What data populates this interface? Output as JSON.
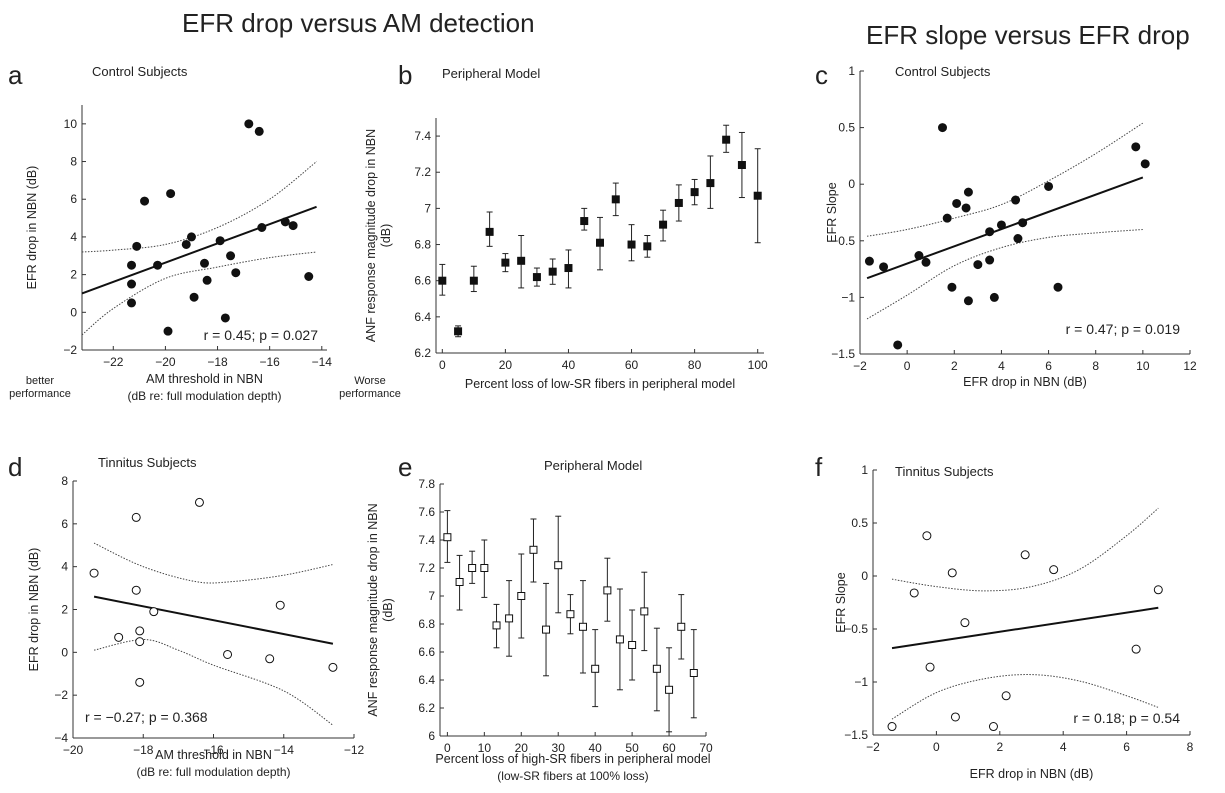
{
  "titles": {
    "left": "EFR drop versus AM detection",
    "right": "EFR slope versus EFR drop"
  },
  "chart_data": [
    {
      "letter": "a",
      "type": "scatter",
      "title": "Control Subjects",
      "xlabel": "AM threshold in NBN",
      "xlabel2": "(dB re: full modulation depth)",
      "ylabel": "EFR drop in NBN (dB)",
      "xlim": [
        -23.2,
        -13.8
      ],
      "ylim": [
        -2,
        11
      ],
      "xticks": [
        -22,
        -20,
        -18,
        -16,
        -14
      ],
      "yticks": [
        -2,
        0,
        2,
        4,
        6,
        8,
        10
      ],
      "marker": "filled-circle",
      "annotation": "r = 0.45; p = 0.027",
      "side_left": [
        "better",
        "performance"
      ],
      "side_right": [
        "Worse",
        "performance"
      ],
      "points": [
        [
          -21.3,
          2.5
        ],
        [
          -21.3,
          1.5
        ],
        [
          -21.3,
          0.5
        ],
        [
          -21.1,
          3.5
        ],
        [
          -20.8,
          5.9
        ],
        [
          -20.3,
          2.5
        ],
        [
          -19.9,
          -1.0
        ],
        [
          -19.8,
          6.3
        ],
        [
          -19.2,
          3.6
        ],
        [
          -19.0,
          4.0
        ],
        [
          -18.9,
          0.8
        ],
        [
          -18.5,
          2.6
        ],
        [
          -18.4,
          1.7
        ],
        [
          -17.9,
          3.8
        ],
        [
          -17.7,
          -0.3
        ],
        [
          -17.5,
          3.0
        ],
        [
          -17.3,
          2.1
        ],
        [
          -16.8,
          10.0
        ],
        [
          -16.4,
          9.6
        ],
        [
          -16.3,
          4.5
        ],
        [
          -15.4,
          4.8
        ],
        [
          -15.1,
          4.6
        ],
        [
          -14.5,
          1.9
        ]
      ],
      "fit": [
        [
          -23.2,
          1.0
        ],
        [
          -14.2,
          5.6
        ]
      ],
      "ci_upper": [
        [
          -23.2,
          3.2
        ],
        [
          -22.0,
          3.3
        ],
        [
          -20.0,
          3.6
        ],
        [
          -18.0,
          4.5
        ],
        [
          -16.0,
          6.0
        ],
        [
          -14.2,
          8.0
        ]
      ],
      "ci_lower": [
        [
          -23.2,
          -1.2
        ],
        [
          -22.0,
          0.2
        ],
        [
          -20.0,
          1.8
        ],
        [
          -18.0,
          2.4
        ],
        [
          -16.0,
          2.9
        ],
        [
          -14.2,
          3.2
        ]
      ]
    },
    {
      "letter": "b",
      "type": "errorbar",
      "title": "Peripheral Model",
      "xlabel": "Percent loss of low-SR fibers in peripheral model",
      "ylabel": "ANF response magnitude drop in NBN",
      "ylabel2": "(dB)",
      "xlim": [
        -2,
        102
      ],
      "ylim": [
        6.2,
        7.5
      ],
      "xticks": [
        0,
        20,
        40,
        60,
        80,
        100
      ],
      "yticks": [
        6.2,
        6.4,
        6.6,
        6.8,
        7,
        7.2,
        7.4
      ],
      "marker": "filled-square",
      "points": [
        {
          "x": 0,
          "y": 6.6,
          "lo": 6.52,
          "hi": 6.69
        },
        {
          "x": 5,
          "y": 6.32,
          "lo": 6.29,
          "hi": 6.35
        },
        {
          "x": 10,
          "y": 6.6,
          "lo": 6.54,
          "hi": 6.68
        },
        {
          "x": 15,
          "y": 6.87,
          "lo": 6.79,
          "hi": 6.98
        },
        {
          "x": 20,
          "y": 6.7,
          "lo": 6.65,
          "hi": 6.75
        },
        {
          "x": 25,
          "y": 6.71,
          "lo": 6.56,
          "hi": 6.85
        },
        {
          "x": 30,
          "y": 6.62,
          "lo": 6.57,
          "hi": 6.67
        },
        {
          "x": 35,
          "y": 6.65,
          "lo": 6.58,
          "hi": 6.72
        },
        {
          "x": 40,
          "y": 6.67,
          "lo": 6.56,
          "hi": 6.77
        },
        {
          "x": 45,
          "y": 6.93,
          "lo": 6.88,
          "hi": 7.0
        },
        {
          "x": 50,
          "y": 6.81,
          "lo": 6.66,
          "hi": 6.95
        },
        {
          "x": 55,
          "y": 7.05,
          "lo": 6.96,
          "hi": 7.14
        },
        {
          "x": 60,
          "y": 6.8,
          "lo": 6.71,
          "hi": 6.91
        },
        {
          "x": 65,
          "y": 6.79,
          "lo": 6.73,
          "hi": 6.85
        },
        {
          "x": 70,
          "y": 6.91,
          "lo": 6.82,
          "hi": 6.99
        },
        {
          "x": 75,
          "y": 7.03,
          "lo": 6.93,
          "hi": 7.13
        },
        {
          "x": 80,
          "y": 7.09,
          "lo": 7.02,
          "hi": 7.16
        },
        {
          "x": 85,
          "y": 7.14,
          "lo": 7.0,
          "hi": 7.29
        },
        {
          "x": 90,
          "y": 7.38,
          "lo": 7.31,
          "hi": 7.46
        },
        {
          "x": 95,
          "y": 7.24,
          "lo": 7.06,
          "hi": 7.42
        },
        {
          "x": 100,
          "y": 7.07,
          "lo": 6.81,
          "hi": 7.33
        }
      ]
    },
    {
      "letter": "c",
      "type": "scatter",
      "title": "Control Subjects",
      "xlabel": "EFR drop in NBN (dB)",
      "ylabel": "EFR Slope",
      "xlim": [
        -2,
        12
      ],
      "ylim": [
        -1.5,
        1
      ],
      "xticks": [
        -2,
        0,
        2,
        4,
        6,
        8,
        10,
        12
      ],
      "yticks": [
        -1.5,
        -1,
        -0.5,
        0,
        0.5,
        1
      ],
      "marker": "filled-circle",
      "annotation": "r = 0.47; p = 0.019",
      "points": [
        [
          -1.6,
          -0.68
        ],
        [
          -1.0,
          -0.73
        ],
        [
          -0.4,
          -1.42
        ],
        [
          0.5,
          -0.63
        ],
        [
          0.8,
          -0.69
        ],
        [
          1.5,
          0.5
        ],
        [
          1.7,
          -0.3
        ],
        [
          1.9,
          -0.91
        ],
        [
          2.1,
          -0.17
        ],
        [
          2.5,
          -0.21
        ],
        [
          2.6,
          -0.07
        ],
        [
          2.6,
          -1.03
        ],
        [
          3.0,
          -0.71
        ],
        [
          3.5,
          -0.42
        ],
        [
          3.5,
          -0.67
        ],
        [
          3.7,
          -1.0
        ],
        [
          4.0,
          -0.36
        ],
        [
          4.6,
          -0.14
        ],
        [
          4.7,
          -0.48
        ],
        [
          4.9,
          -0.34
        ],
        [
          6.0,
          -0.02
        ],
        [
          6.4,
          -0.91
        ],
        [
          9.7,
          0.33
        ],
        [
          10.1,
          0.18
        ]
      ],
      "fit": [
        [
          -1.7,
          -0.83
        ],
        [
          10.0,
          0.06
        ]
      ],
      "ci_upper": [
        [
          -1.7,
          -0.46
        ],
        [
          0,
          -0.4
        ],
        [
          2,
          -0.3
        ],
        [
          4,
          -0.18
        ],
        [
          6,
          0.03
        ],
        [
          8,
          0.27
        ],
        [
          10.0,
          0.54
        ]
      ],
      "ci_lower": [
        [
          -1.7,
          -1.19
        ],
        [
          0,
          -0.98
        ],
        [
          2,
          -0.72
        ],
        [
          4,
          -0.56
        ],
        [
          6,
          -0.47
        ],
        [
          8,
          -0.43
        ],
        [
          10.0,
          -0.4
        ]
      ]
    },
    {
      "letter": "d",
      "type": "scatter",
      "title": "Tinnitus Subjects",
      "xlabel": "AM threshold in NBN",
      "xlabel2": "(dB re: full modulation depth)",
      "ylabel": "EFR drop in NBN (dB)",
      "xlim": [
        -20,
        -12
      ],
      "ylim": [
        -4,
        8
      ],
      "xticks": [
        -20,
        -18,
        -16,
        -14,
        -12
      ],
      "yticks": [
        -4,
        -2,
        0,
        2,
        4,
        6,
        8
      ],
      "marker": "open-circle",
      "annotation": "r = −0.27; p = 0.368",
      "points": [
        [
          -19.4,
          3.7
        ],
        [
          -18.7,
          0.7
        ],
        [
          -18.2,
          6.3
        ],
        [
          -18.2,
          2.9
        ],
        [
          -18.1,
          1.0
        ],
        [
          -18.1,
          0.5
        ],
        [
          -18.1,
          -1.4
        ],
        [
          -17.7,
          1.9
        ],
        [
          -16.4,
          7.0
        ],
        [
          -15.6,
          -0.1
        ],
        [
          -14.4,
          -0.3
        ],
        [
          -14.1,
          2.2
        ],
        [
          -12.6,
          -0.7
        ]
      ],
      "fit": [
        [
          -19.4,
          2.6
        ],
        [
          -12.6,
          0.4
        ]
      ],
      "ci_upper": [
        [
          -19.4,
          5.1
        ],
        [
          -18.0,
          4.0
        ],
        [
          -16.5,
          3.3
        ],
        [
          -15.5,
          3.3
        ],
        [
          -14.0,
          3.6
        ],
        [
          -12.6,
          4.1
        ]
      ],
      "ci_lower": [
        [
          -19.4,
          0.1
        ],
        [
          -18.0,
          0.6
        ],
        [
          -17.0,
          0.1
        ],
        [
          -16.0,
          -0.6
        ],
        [
          -14.0,
          -1.8
        ],
        [
          -12.6,
          -3.4
        ]
      ]
    },
    {
      "letter": "e",
      "type": "errorbar",
      "title": "Peripheral Model",
      "xlabel": "Percent loss of high-SR fibers in peripheral model",
      "xlabel2": "(low-SR fibers at 100% loss)",
      "ylabel": "ANF response magnitude drop in NBN",
      "ylabel2": "(dB)",
      "xlim": [
        -2,
        70
      ],
      "ylim": [
        6,
        7.8
      ],
      "xticks": [
        0,
        10,
        20,
        30,
        40,
        50,
        60,
        70
      ],
      "yticks": [
        6,
        6.2,
        6.4,
        6.6,
        6.8,
        7,
        7.2,
        7.4,
        7.6,
        7.8
      ],
      "marker": "open-square",
      "points": [
        {
          "x": 0,
          "y": 7.42,
          "lo": 7.24,
          "hi": 7.61
        },
        {
          "x": 3.3,
          "y": 7.1,
          "lo": 6.9,
          "hi": 7.29
        },
        {
          "x": 6.7,
          "y": 7.2,
          "lo": 7.09,
          "hi": 7.32
        },
        {
          "x": 10,
          "y": 7.2,
          "lo": 6.99,
          "hi": 7.4
        },
        {
          "x": 13.3,
          "y": 6.79,
          "lo": 6.63,
          "hi": 6.94
        },
        {
          "x": 16.7,
          "y": 6.84,
          "lo": 6.57,
          "hi": 7.11
        },
        {
          "x": 20,
          "y": 7.0,
          "lo": 6.7,
          "hi": 7.3
        },
        {
          "x": 23.3,
          "y": 7.33,
          "lo": 7.1,
          "hi": 7.55
        },
        {
          "x": 26.7,
          "y": 6.76,
          "lo": 6.43,
          "hi": 7.09
        },
        {
          "x": 30,
          "y": 7.22,
          "lo": 6.88,
          "hi": 7.57
        },
        {
          "x": 33.3,
          "y": 6.87,
          "lo": 6.73,
          "hi": 7.01
        },
        {
          "x": 36.7,
          "y": 6.78,
          "lo": 6.45,
          "hi": 7.11
        },
        {
          "x": 40,
          "y": 6.48,
          "lo": 6.21,
          "hi": 6.76
        },
        {
          "x": 43.3,
          "y": 7.04,
          "lo": 6.82,
          "hi": 7.27
        },
        {
          "x": 46.7,
          "y": 6.69,
          "lo": 6.33,
          "hi": 7.05
        },
        {
          "x": 50,
          "y": 6.65,
          "lo": 6.4,
          "hi": 6.9
        },
        {
          "x": 53.3,
          "y": 6.89,
          "lo": 6.61,
          "hi": 7.17
        },
        {
          "x": 56.7,
          "y": 6.48,
          "lo": 6.18,
          "hi": 6.77
        },
        {
          "x": 60,
          "y": 6.33,
          "lo": 6.03,
          "hi": 6.63
        },
        {
          "x": 63.3,
          "y": 6.78,
          "lo": 6.55,
          "hi": 7.01
        },
        {
          "x": 66.7,
          "y": 6.45,
          "lo": 6.13,
          "hi": 6.76
        }
      ]
    },
    {
      "letter": "f",
      "type": "scatter",
      "title": "Tinnitus Subjects",
      "xlabel": "EFR drop in NBN (dB)",
      "ylabel": "EFR Slope",
      "xlim": [
        -2,
        8
      ],
      "ylim": [
        -1.5,
        1
      ],
      "xticks": [
        -2,
        0,
        2,
        4,
        6,
        8
      ],
      "yticks": [
        -1.5,
        -1,
        -0.5,
        0,
        0.5,
        1
      ],
      "marker": "open-circle",
      "annotation": "r = 0.18; p = 0.54",
      "points": [
        [
          -1.4,
          -1.42
        ],
        [
          -0.7,
          -0.16
        ],
        [
          -0.3,
          0.38
        ],
        [
          -0.2,
          -0.86
        ],
        [
          0.5,
          0.03
        ],
        [
          0.6,
          -1.33
        ],
        [
          0.9,
          -0.44
        ],
        [
          1.8,
          -1.42
        ],
        [
          2.2,
          -1.13
        ],
        [
          2.8,
          0.2
        ],
        [
          3.7,
          0.06
        ],
        [
          6.3,
          -0.69
        ],
        [
          7.0,
          -0.13
        ]
      ],
      "fit": [
        [
          -1.4,
          -0.68
        ],
        [
          7.0,
          -0.3
        ]
      ],
      "ci_upper": [
        [
          -1.4,
          -0.03
        ],
        [
          0,
          -0.1
        ],
        [
          1.5,
          -0.14
        ],
        [
          3.0,
          -0.1
        ],
        [
          4.5,
          0.06
        ],
        [
          6.0,
          0.38
        ],
        [
          7.0,
          0.64
        ]
      ],
      "ci_lower": [
        [
          -1.4,
          -1.35
        ],
        [
          0,
          -1.1
        ],
        [
          1.5,
          -0.97
        ],
        [
          3.0,
          -0.93
        ],
        [
          4.5,
          -0.99
        ],
        [
          6.0,
          -1.13
        ],
        [
          7.0,
          -1.24
        ]
      ]
    }
  ]
}
